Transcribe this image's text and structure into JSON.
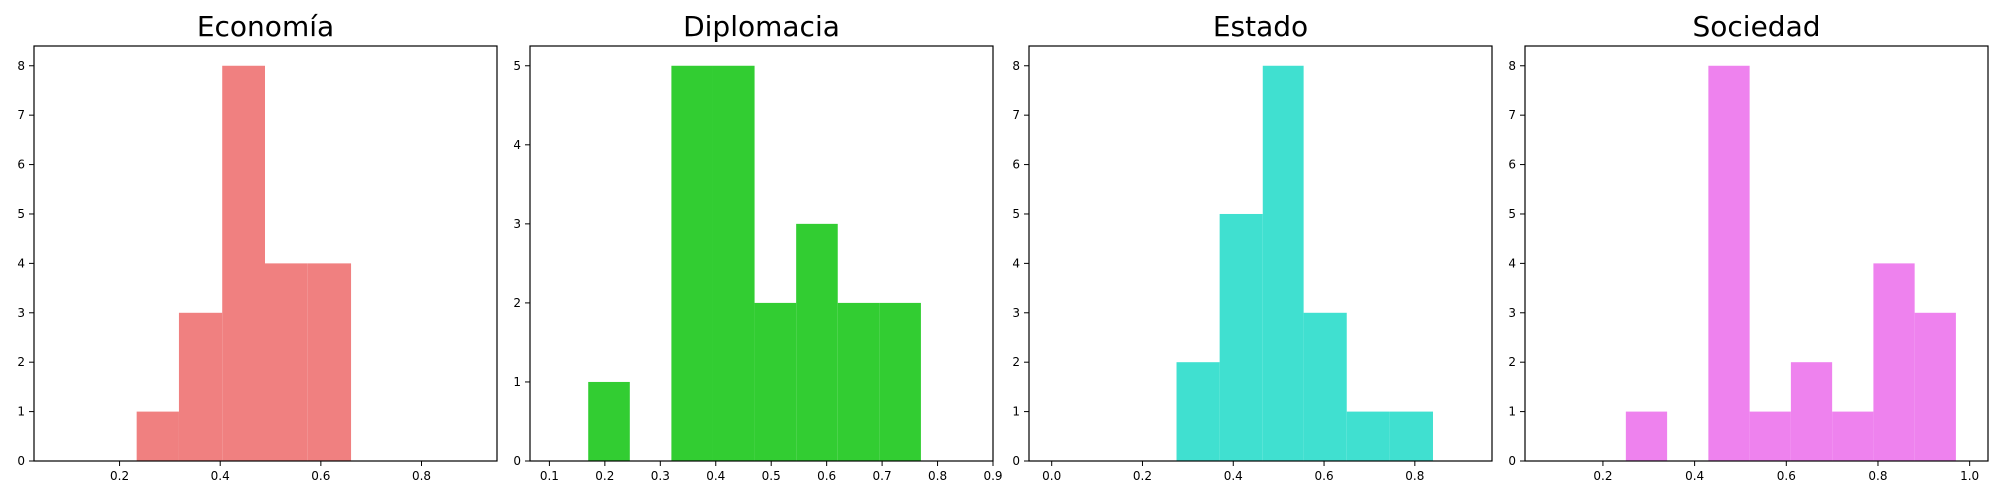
{
  "chart_data": [
    {
      "type": "bar",
      "title": "Economía",
      "xlabel": "",
      "ylabel": "",
      "color": "#f08080",
      "xlim": [
        0.03,
        0.95
      ],
      "ylim": [
        0,
        8.4
      ],
      "xticks": [
        "0.2",
        "0.4",
        "0.6",
        "0.8"
      ],
      "yticks": [
        "0",
        "1",
        "2",
        "3",
        "4",
        "5",
        "6",
        "7",
        "8"
      ],
      "bins": [
        {
          "x0": 0.234,
          "x1": 0.318,
          "value": 1
        },
        {
          "x0": 0.318,
          "x1": 0.404,
          "value": 3
        },
        {
          "x0": 0.404,
          "x1": 0.489,
          "value": 8
        },
        {
          "x0": 0.489,
          "x1": 0.574,
          "value": 4
        },
        {
          "x0": 0.574,
          "x1": 0.66,
          "value": 4
        }
      ]
    },
    {
      "type": "bar",
      "title": "Diplomacia",
      "xlabel": "",
      "ylabel": "",
      "color": "#32cd32",
      "xlim": [
        0.065,
        0.9
      ],
      "ylim": [
        0,
        5.25
      ],
      "xticks": [
        "0.1",
        "0.2",
        "0.3",
        "0.4",
        "0.5",
        "0.6",
        "0.7",
        "0.8",
        "0.9"
      ],
      "yticks": [
        "0",
        "1",
        "2",
        "3",
        "4",
        "5"
      ],
      "bins": [
        {
          "x0": 0.17,
          "x1": 0.245,
          "value": 1
        },
        {
          "x0": 0.245,
          "x1": 0.32,
          "value": 0
        },
        {
          "x0": 0.32,
          "x1": 0.395,
          "value": 5
        },
        {
          "x0": 0.395,
          "x1": 0.47,
          "value": 5
        },
        {
          "x0": 0.47,
          "x1": 0.545,
          "value": 2
        },
        {
          "x0": 0.545,
          "x1": 0.62,
          "value": 3
        },
        {
          "x0": 0.62,
          "x1": 0.695,
          "value": 2
        },
        {
          "x0": 0.695,
          "x1": 0.77,
          "value": 2
        }
      ]
    },
    {
      "type": "bar",
      "title": "Estado",
      "xlabel": "",
      "ylabel": "",
      "color": "#40e0d0",
      "xlim": [
        -0.05,
        0.97
      ],
      "ylim": [
        0,
        8.4
      ],
      "xticks": [
        "0.0",
        "0.2",
        "0.4",
        "0.6",
        "0.8"
      ],
      "yticks": [
        "0",
        "1",
        "2",
        "3",
        "4",
        "5",
        "6",
        "7",
        "8"
      ],
      "bins": [
        {
          "x0": 0.275,
          "x1": 0.37,
          "value": 2
        },
        {
          "x0": 0.37,
          "x1": 0.465,
          "value": 5
        },
        {
          "x0": 0.465,
          "x1": 0.555,
          "value": 8
        },
        {
          "x0": 0.555,
          "x1": 0.65,
          "value": 3
        },
        {
          "x0": 0.65,
          "x1": 0.745,
          "value": 1
        },
        {
          "x0": 0.745,
          "x1": 0.84,
          "value": 1
        }
      ]
    },
    {
      "type": "bar",
      "title": "Sociedad",
      "xlabel": "",
      "ylabel": "",
      "color": "#ee82ee",
      "xlim": [
        0.03,
        1.04
      ],
      "ylim": [
        0,
        8.4
      ],
      "xticks": [
        "0.2",
        "0.4",
        "0.6",
        "0.8",
        "1.0"
      ],
      "yticks": [
        "0",
        "1",
        "2",
        "3",
        "4",
        "5",
        "6",
        "7",
        "8"
      ],
      "bins": [
        {
          "x0": 0.25,
          "x1": 0.34,
          "value": 1
        },
        {
          "x0": 0.34,
          "x1": 0.43,
          "value": 0
        },
        {
          "x0": 0.43,
          "x1": 0.52,
          "value": 8
        },
        {
          "x0": 0.52,
          "x1": 0.61,
          "value": 1
        },
        {
          "x0": 0.61,
          "x1": 0.7,
          "value": 2
        },
        {
          "x0": 0.7,
          "x1": 0.79,
          "value": 1
        },
        {
          "x0": 0.79,
          "x1": 0.88,
          "value": 4
        },
        {
          "x0": 0.88,
          "x1": 0.97,
          "value": 3
        }
      ]
    }
  ]
}
